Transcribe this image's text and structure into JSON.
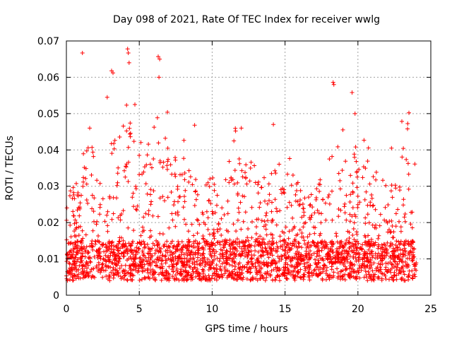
{
  "chart_data": {
    "type": "scatter",
    "title": "Day 098 of 2021, Rate Of TEC Index for receiver wwlg",
    "xlabel": "GPS time / hours",
    "ylabel": "ROTI / TECUs",
    "xlim": [
      0,
      25
    ],
    "ylim": [
      0,
      0.07
    ],
    "xticks": [
      0,
      5,
      10,
      15,
      20,
      25
    ],
    "xtick_labels": [
      "0",
      "5",
      "10",
      "15",
      "20",
      "25"
    ],
    "yticks": [
      0,
      0.01,
      0.02,
      0.03,
      0.04,
      0.05,
      0.06,
      0.07
    ],
    "ytick_labels": [
      "0",
      "0.01",
      "0.02",
      "0.03",
      "0.04",
      "0.05",
      "0.06",
      "0.07"
    ],
    "grid": true,
    "marker": "+",
    "marker_color": "#ff0000",
    "series": [
      {
        "name": "ROTI",
        "x_range": [
          0,
          24
        ],
        "baseline_typical": [
          0.004,
          0.015
        ],
        "peaks": [
          {
            "x": 1.1,
            "y": 0.0667
          },
          {
            "x": 3.1,
            "y": 0.0618
          },
          {
            "x": 3.2,
            "y": 0.0612
          },
          {
            "x": 4.2,
            "y": 0.0678
          },
          {
            "x": 4.25,
            "y": 0.0667
          },
          {
            "x": 4.3,
            "y": 0.064
          },
          {
            "x": 6.3,
            "y": 0.0657
          },
          {
            "x": 6.4,
            "y": 0.065
          },
          {
            "x": 6.35,
            "y": 0.06
          },
          {
            "x": 4.7,
            "y": 0.0525
          },
          {
            "x": 1.6,
            "y": 0.046
          },
          {
            "x": 2.8,
            "y": 0.0545
          },
          {
            "x": 18.3,
            "y": 0.0586
          },
          {
            "x": 18.35,
            "y": 0.058
          },
          {
            "x": 19.6,
            "y": 0.0558
          },
          {
            "x": 19.8,
            "y": 0.05
          },
          {
            "x": 23.5,
            "y": 0.0502
          },
          {
            "x": 22.3,
            "y": 0.0405
          },
          {
            "x": 23.4,
            "y": 0.0458
          },
          {
            "x": 14.2,
            "y": 0.047
          },
          {
            "x": 8.8,
            "y": 0.0468
          },
          {
            "x": 12.0,
            "y": 0.046
          }
        ]
      }
    ]
  }
}
